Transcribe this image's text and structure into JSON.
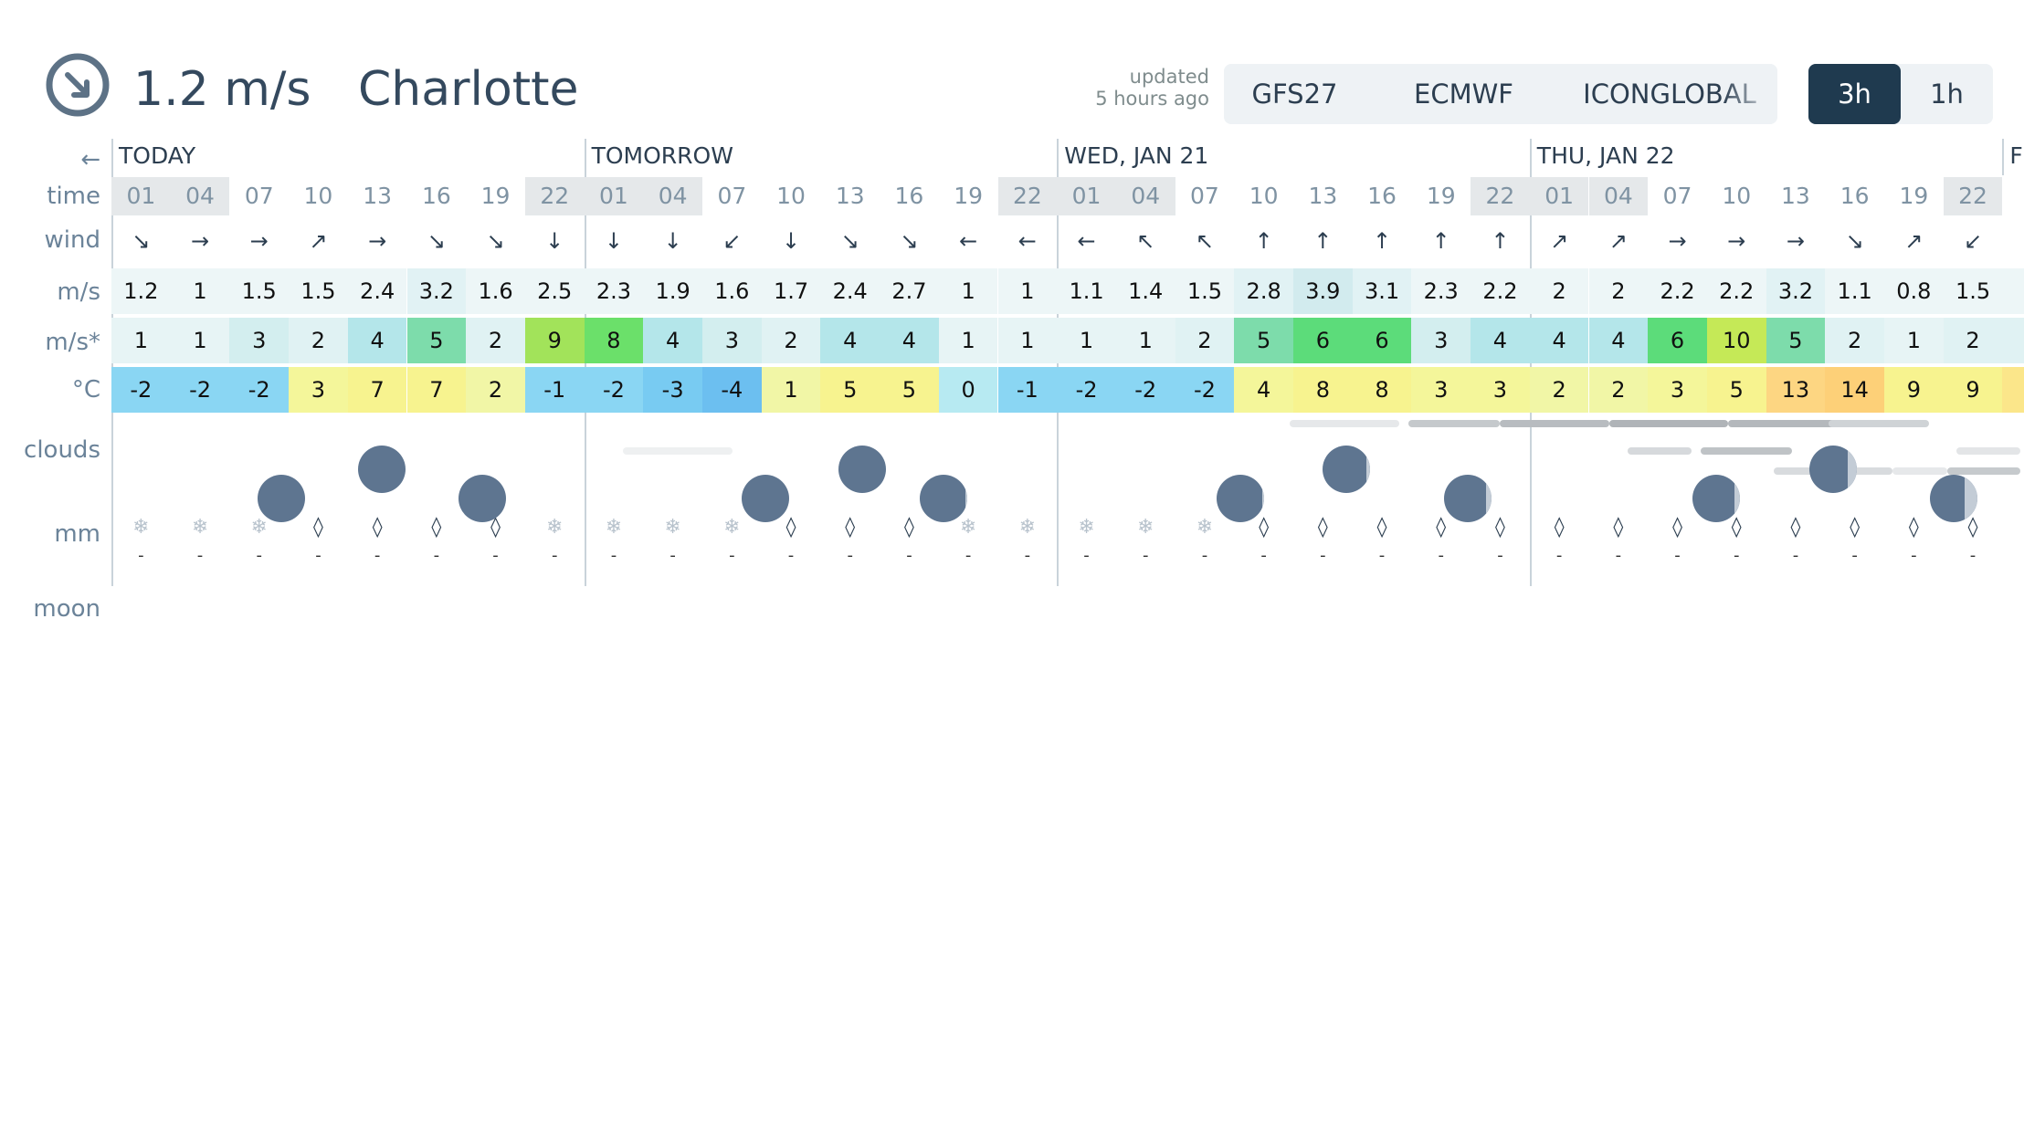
{
  "header": {
    "wind_now_value": "1.2",
    "wind_now_unit": "m/s",
    "city": "Charlotte",
    "updated_line1": "updated",
    "updated_line2": "5 hours ago",
    "models": [
      "GFS27",
      "ECMWF",
      "ICONGLOBAL"
    ],
    "active_model": "GFS27",
    "steps": [
      "3h",
      "1h"
    ],
    "active_step": "3h"
  },
  "row_labels": {
    "nav_back": "←",
    "time": "time",
    "wind": "wind",
    "speed": "m/s",
    "gust": "m/s*",
    "temp": "°C",
    "clouds": "clouds",
    "precip": "mm",
    "moon": "moon"
  },
  "days": [
    {
      "title": "TODAY",
      "hours": [
        "01",
        "04",
        "07",
        "10",
        "13",
        "16",
        "19",
        "22"
      ],
      "wind_arrows": [
        "↘",
        "→",
        "→",
        "↗",
        "→",
        "↘",
        "↘",
        "↓"
      ],
      "wind_speed": [
        "1.2",
        "1",
        "1.5",
        "1.5",
        "2.4",
        "3.2",
        "1.6",
        "2.5"
      ],
      "gusts": [
        "1",
        "1",
        "3",
        "2",
        "4",
        "5",
        "2",
        "9"
      ],
      "temperature": [
        "-2",
        "-2",
        "-2",
        "3",
        "7",
        "7",
        "2",
        "-1"
      ],
      "precip_icons": [
        "❄",
        "❄",
        "❄",
        "◊",
        "◊",
        "◊",
        "◊",
        "❄"
      ],
      "precip_mm": [
        "-",
        "-",
        "-",
        "-",
        "-",
        "-",
        "-",
        "-"
      ]
    },
    {
      "title": "TOMORROW",
      "hours": [
        "01",
        "04",
        "07",
        "10",
        "13",
        "16",
        "19",
        "22"
      ],
      "wind_arrows": [
        "↓",
        "↓",
        "↙",
        "↓",
        "↘",
        "↘",
        "←",
        "←"
      ],
      "wind_speed": [
        "2.3",
        "1.9",
        "1.6",
        "1.7",
        "2.4",
        "2.7",
        "1",
        "1"
      ],
      "gusts": [
        "8",
        "4",
        "3",
        "2",
        "4",
        "4",
        "1",
        "1"
      ],
      "temperature": [
        "-2",
        "-3",
        "-4",
        "1",
        "5",
        "5",
        "0",
        "-1"
      ],
      "precip_icons": [
        "❄",
        "❄",
        "❄",
        "◊",
        "◊",
        "◊",
        "❄",
        "❄"
      ],
      "precip_mm": [
        "-",
        "-",
        "-",
        "-",
        "-",
        "-",
        "-",
        "-"
      ]
    },
    {
      "title": "WED, JAN 21",
      "hours": [
        "01",
        "04",
        "07",
        "10",
        "13",
        "16",
        "19",
        "22"
      ],
      "wind_arrows": [
        "←",
        "↖",
        "↖",
        "↑",
        "↑",
        "↑",
        "↑",
        "↑"
      ],
      "wind_speed": [
        "1.1",
        "1.4",
        "1.5",
        "2.8",
        "3.9",
        "3.1",
        "2.3",
        "2.2"
      ],
      "gusts": [
        "1",
        "1",
        "2",
        "5",
        "6",
        "6",
        "3",
        "4"
      ],
      "temperature": [
        "-2",
        "-2",
        "-2",
        "4",
        "8",
        "8",
        "3",
        "3"
      ],
      "precip_icons": [
        "❄",
        "❄",
        "❄",
        "◊",
        "◊",
        "◊",
        "◊",
        "◊"
      ],
      "precip_mm": [
        "-",
        "-",
        "-",
        "-",
        "-",
        "-",
        "-",
        "-"
      ]
    },
    {
      "title": "THU, JAN 22",
      "hours": [
        "01",
        "04",
        "07",
        "10",
        "13",
        "16",
        "19",
        "22"
      ],
      "wind_arrows": [
        "↗",
        "↗",
        "→",
        "→",
        "→",
        "↘",
        "↗",
        "↙"
      ],
      "wind_speed": [
        "2",
        "2",
        "2.2",
        "2.2",
        "3.2",
        "1.1",
        "0.8",
        "1.5"
      ],
      "gusts": [
        "4",
        "4",
        "6",
        "10",
        "5",
        "2",
        "1",
        "2"
      ],
      "temperature": [
        "2",
        "2",
        "3",
        "5",
        "13",
        "14",
        "9",
        "9"
      ],
      "precip_icons": [
        "◊",
        "◊",
        "◊",
        "◊",
        "◊",
        "◊",
        "◊",
        "◊"
      ],
      "precip_mm": [
        "-",
        "-",
        "-",
        "-",
        "-",
        "-",
        "-",
        "-"
      ]
    },
    {
      "title": "F",
      "hours": [],
      "wind_arrows": [],
      "wind_speed": [],
      "gusts": [],
      "temperature": [],
      "precip_icons": [],
      "precip_mm": []
    }
  ],
  "colors": {
    "brand_dark": "#1f3a4f",
    "text": "#2c3e50",
    "label": "#6b8399",
    "moon": "#5e7590"
  }
}
